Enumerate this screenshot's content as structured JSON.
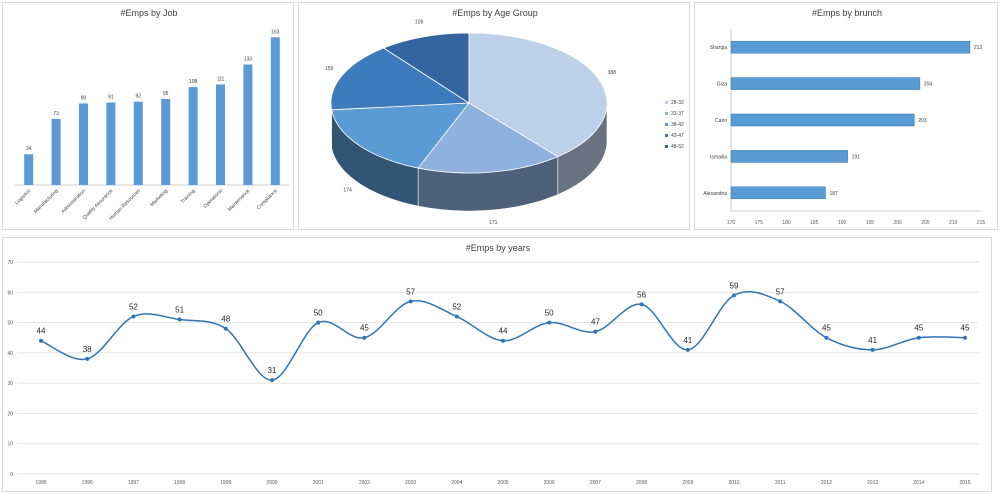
{
  "chart_data": [
    {
      "id": "job",
      "type": "bar",
      "title": "#Emps by Job",
      "categories": [
        "Logistics",
        "Manufacturing",
        "Administration",
        "Quality Assurance",
        "Human Resources",
        "Marketing",
        "Training",
        "Operations",
        "Maintenance",
        "Compliance"
      ],
      "values": [
        34,
        73,
        90,
        91,
        92,
        95,
        108,
        111,
        133,
        163
      ],
      "color": "#5b9bd5"
    },
    {
      "id": "age",
      "type": "pie",
      "title": "#Emps by Age Group",
      "categories": [
        "28-32",
        "33-37",
        "38-42",
        "43-47",
        "48-52"
      ],
      "values": [
        388,
        171,
        174,
        159,
        106
      ],
      "colors": [
        "#bdd0ea",
        "#8fb1dd",
        "#5b9bd5",
        "#3e7bbd",
        "#3565a0"
      ],
      "legend": "right"
    },
    {
      "id": "branch",
      "type": "bar",
      "orientation": "horizontal",
      "title": "#Emps by brunch",
      "categories": [
        "Sharqia",
        "Giza",
        "Cairo",
        "Ismailia",
        "Alexandria"
      ],
      "values": [
        213,
        204,
        203,
        191,
        187
      ],
      "xlim": [
        170,
        215
      ],
      "xticks": [
        170,
        175,
        180,
        185,
        190,
        195,
        200,
        205,
        210,
        215
      ],
      "color": "#5b9bd5"
    },
    {
      "id": "years",
      "type": "line",
      "title": "#Emps by years",
      "x": [
        "1995",
        "1996",
        "1997",
        "1998",
        "1999",
        "2000",
        "2001",
        "2002",
        "2003",
        "2004",
        "2005",
        "2006",
        "2007",
        "2008",
        "2009",
        "2010",
        "2011",
        "2012",
        "2013",
        "2014",
        "2015"
      ],
      "values": [
        44,
        38,
        52,
        51,
        48,
        31,
        50,
        45,
        57,
        52,
        44,
        50,
        47,
        56,
        41,
        59,
        57,
        45,
        41,
        45,
        45
      ],
      "ylim": [
        0,
        70
      ],
      "yticks": [
        0,
        10,
        20,
        30,
        40,
        50,
        60,
        70
      ],
      "grid": true,
      "smooth": true,
      "color": "#2e75b6"
    }
  ]
}
